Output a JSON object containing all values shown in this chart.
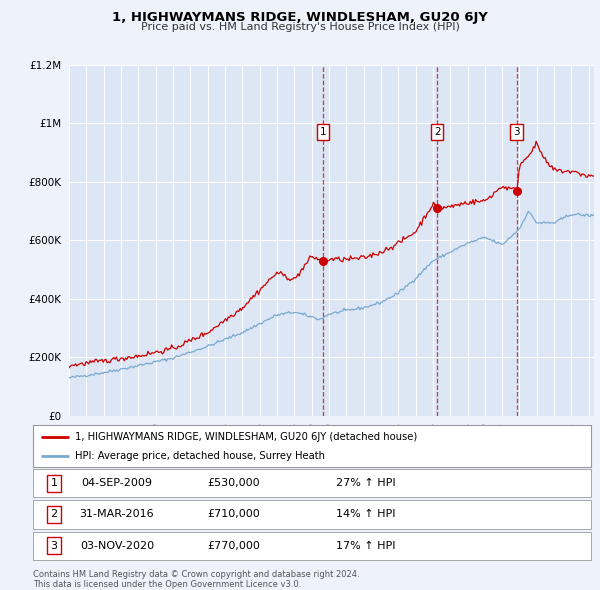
{
  "title": "1, HIGHWAYMANS RIDGE, WINDLESHAM, GU20 6JY",
  "subtitle": "Price paid vs. HM Land Registry's House Price Index (HPI)",
  "ylim": [
    0,
    1200000
  ],
  "xlim_start": 1995.0,
  "xlim_end": 2025.3,
  "yticks": [
    0,
    200000,
    400000,
    600000,
    800000,
    1000000,
    1200000
  ],
  "ytick_labels": [
    "£0",
    "£200K",
    "£400K",
    "£600K",
    "£800K",
    "£1M",
    "£1.2M"
  ],
  "background_color": "#eef2fb",
  "plot_bg_color": "#dce6f5",
  "grid_color": "#ffffff",
  "sale_line_color": "#cc0000",
  "hpi_line_color": "#7aaad0",
  "sale_dot_color": "#cc0000",
  "transactions": [
    {
      "label": "1",
      "date": 2009.67,
      "price": 530000,
      "date_str": "04-SEP-2009"
    },
    {
      "label": "2",
      "date": 2016.25,
      "price": 710000,
      "date_str": "31-MAR-2016"
    },
    {
      "label": "3",
      "date": 2020.84,
      "price": 770000,
      "date_str": "03-NOV-2020"
    }
  ],
  "legend_sale_label": "1, HIGHWAYMANS RIDGE, WINDLESHAM, GU20 6JY (detached house)",
  "legend_hpi_label": "HPI: Average price, detached house, Surrey Heath",
  "footer1": "Contains HM Land Registry data © Crown copyright and database right 2024.",
  "footer2": "This data is licensed under the Open Government Licence v3.0.",
  "table_rows": [
    [
      "1",
      "04-SEP-2009",
      "£530,000",
      "27% ↑ HPI"
    ],
    [
      "2",
      "31-MAR-2016",
      "£710,000",
      "14% ↑ HPI"
    ],
    [
      "3",
      "03-NOV-2020",
      "£770,000",
      "17% ↑ HPI"
    ]
  ]
}
